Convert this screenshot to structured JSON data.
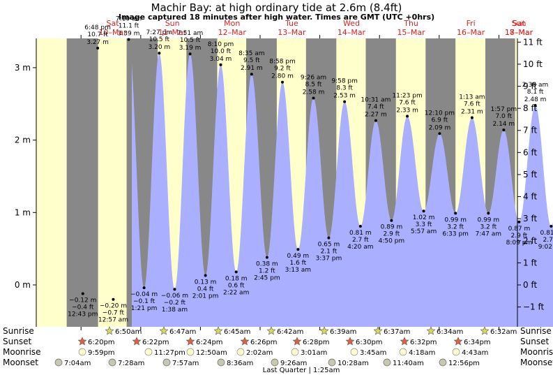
{
  "title": "Machir Bay: at high  ordinary tide at 2.6m (8.4ft)",
  "subtitle": "Image captured 18 minutes after high water. Times are GMT (UTC +0hrs)",
  "colors": {
    "water": "#aab0ff",
    "day": "#ffffcc",
    "night": "#888888",
    "dayLabel": "#e02020"
  },
  "chart_data": {
    "type": "area",
    "title": "Machir Bay: at high  ordinary tide at 2.6m (8.4ft)",
    "subtitle": "Image captured 18 minutes after high water. Times are GMT (UTC +0hrs)",
    "x_unit": "days from Sat 10-Mar 00:00 GMT",
    "x_range": [
      0.85,
      8.42
    ],
    "ylim_m": [
      -0.5,
      3.4
    ],
    "left_axis": {
      "ticks": [
        3,
        2,
        1,
        0
      ],
      "labels": [
        "3 m",
        "2 m",
        "1 m",
        "0 m"
      ]
    },
    "right_axis": {
      "ticks_ft": [
        11,
        10,
        9,
        8,
        7,
        6,
        5,
        4,
        3,
        2,
        1,
        0,
        -1
      ],
      "labels": [
        "11 ft",
        "10 ft",
        "9 ft",
        "8 ft",
        "7 ft",
        "6 ft",
        "5 ft",
        "4 ft",
        "3 ft",
        "2 ft",
        "1 ft",
        "0 ft",
        "−1 ft"
      ]
    },
    "days": [
      {
        "d": "Sat",
        "date": "10–Mar",
        "x": 0.96
      },
      {
        "d": "Sun",
        "date": "11–Mar",
        "x": 1.96
      },
      {
        "d": "Mon",
        "date": "12–Mar",
        "x": 2.96
      },
      {
        "d": "Tue",
        "date": "13–Mar",
        "x": 3.96
      },
      {
        "d": "Wed",
        "date": "14–Mar",
        "x": 4.96
      },
      {
        "d": "Thu",
        "date": "15–Mar",
        "x": 5.96
      },
      {
        "d": "Fri",
        "date": "16–Mar",
        "x": 6.96
      },
      {
        "d": "Sat",
        "date": "17–Mar",
        "x": 7.96
      },
      {
        "d": "Sun",
        "date": "18–Mar",
        "x": 8.96
      }
    ],
    "tides": [
      {
        "type": "low",
        "t": 0.03,
        "m": "−0.12 m",
        "ft": "−0.4 ft",
        "time": "12:43 pm",
        "h": -0.12
      },
      {
        "type": "high",
        "t": 0.279,
        "m": "3.27 m",
        "ft": "10.7 ft",
        "time": "6:48 pm",
        "h": 3.27
      },
      {
        "type": "low",
        "t": 0.54,
        "m": "−0.20 m",
        "ft": "−0.7 ft",
        "time": "12:57 am",
        "h": -0.2
      },
      {
        "type": "high",
        "t": 0.798,
        "m": "3.39 m",
        "ft": "11.1 ft",
        "time": "7:10 am",
        "h": 3.39
      },
      {
        "type": "low",
        "t": 1.056,
        "m": "−0.04 m",
        "ft": "−0.1 ft",
        "time": "1:21 pm",
        "h": -0.04
      },
      {
        "type": "high",
        "t": 1.31,
        "m": "3.20 m",
        "ft": "10.5 ft",
        "time": "7:27 pm",
        "h": 3.2
      },
      {
        "type": "low",
        "t": 1.568,
        "m": "−0.06 m",
        "ft": "−0.2 ft",
        "time": "1:38 am",
        "h": -0.06
      },
      {
        "type": "high",
        "t": 1.827,
        "m": "3.19 m",
        "ft": "10.5 ft",
        "time": "7:51 am",
        "h": 3.19
      },
      {
        "type": "low",
        "t": 2.084,
        "m": "0.13 m",
        "ft": "0.4 ft",
        "time": "2:01 pm",
        "h": 0.13
      },
      {
        "type": "high",
        "t": 2.34,
        "m": "3.04 m",
        "ft": "10.0 ft",
        "time": "8:10 pm",
        "h": 3.04
      },
      {
        "type": "low",
        "t": 2.599,
        "m": "0.18 m",
        "ft": "0.6 ft",
        "time": "2:22 am",
        "h": 0.18
      },
      {
        "type": "high",
        "t": 2.858,
        "m": "2.91 m",
        "ft": "9.5 ft",
        "time": "8:35 am",
        "h": 2.91
      },
      {
        "type": "low",
        "t": 3.115,
        "m": "0.38 m",
        "ft": "1.2 ft",
        "time": "2:45 pm",
        "h": 0.38
      },
      {
        "type": "high",
        "t": 3.374,
        "m": "2.80 m",
        "ft": "9.2 ft",
        "time": "8:58 pm",
        "h": 2.8
      },
      {
        "type": "low",
        "t": 3.635,
        "m": "0.49 m",
        "ft": "1.6 ft",
        "time": "3:13 am",
        "h": 0.49
      },
      {
        "type": "high",
        "t": 3.894,
        "m": "2.58 m",
        "ft": "8.5 ft",
        "time": "9:26 am",
        "h": 2.58
      },
      {
        "type": "low",
        "t": 4.15,
        "m": "0.65 m",
        "ft": "2.1 ft",
        "time": "3:37 pm",
        "h": 0.65
      },
      {
        "type": "high",
        "t": 4.415,
        "m": "2.53 m",
        "ft": "8.3 ft",
        "time": "9:58 pm",
        "h": 2.53
      },
      {
        "type": "low",
        "t": 4.68,
        "m": "0.81 m",
        "ft": "2.7 ft",
        "time": "4:20 am",
        "h": 0.81
      },
      {
        "type": "high",
        "t": 4.938,
        "m": "2.27 m",
        "ft": "7.4 ft",
        "time": "10:31 am",
        "h": 2.27
      },
      {
        "type": "low",
        "t": 5.201,
        "m": "0.89 m",
        "ft": "2.9 ft",
        "time": "4:50 pm",
        "h": 0.89
      },
      {
        "type": "high",
        "t": 5.466,
        "m": "2.33 m",
        "ft": "7.6 ft",
        "time": "11:23 pm",
        "h": 2.33
      },
      {
        "type": "low",
        "t": 5.74,
        "m": "1.02 m",
        "ft": "3.3 ft",
        "time": "5:57 am",
        "h": 1.02
      },
      {
        "type": "high",
        "t": 6.007,
        "m": "2.09 m",
        "ft": "6.9 ft",
        "time": "12:10 pm",
        "h": 2.09
      },
      {
        "type": "low",
        "t": 6.273,
        "m": "0.99 m",
        "ft": "3.2 ft",
        "time": "6:33 pm",
        "h": 0.99
      },
      {
        "type": "high",
        "t": 6.55,
        "m": "2.31 m",
        "ft": "7.6 ft",
        "time": "1:13 am",
        "h": 2.31
      },
      {
        "type": "low",
        "t": 6.824,
        "m": "0.99 m",
        "ft": "3.2 ft",
        "time": "7:47 am",
        "h": 0.99
      },
      {
        "type": "high",
        "t": 7.081,
        "m": "2.14 m",
        "ft": "7.0 ft",
        "time": "1:57 pm",
        "h": 2.14
      },
      {
        "type": "low",
        "t": 7.339,
        "m": "0.87 m",
        "ft": "2.9 ft",
        "time": "8:09 pm",
        "h": 0.87
      },
      {
        "type": "high",
        "t": 7.61,
        "m": "2.48 m",
        "ft": "8.1 ft",
        "time": "2:38 am",
        "h": 2.48
      },
      {
        "type": "low",
        "t": 7.876,
        "m": "0.81 m",
        "ft": "2.7 ft",
        "time": "9:02 am",
        "h": 0.81
      }
    ],
    "sunrise": [
      "6:50am",
      "6:47am",
      "6:45am",
      "6:42am",
      "6:39am",
      "6:37am",
      "6:34am",
      "6:32am"
    ],
    "sunset": [
      "6:20pm",
      "6:22pm",
      "6:24pm",
      "6:26pm",
      "6:28pm",
      "6:30pm",
      "6:32pm",
      "6:34pm"
    ],
    "moonrise": [
      "9:59pm",
      "11:27pm",
      "12:50am",
      "2:02am",
      "3:01am",
      "3:45am",
      "4:18am",
      "4:43am"
    ],
    "moonset": [
      "7:04am",
      "7:28am",
      "7:57am",
      "8:36am",
      "9:26am",
      "10:28am",
      "11:40am",
      "12:56pm"
    ],
    "moon_phase": "Last Quarter | 1:25am",
    "row_labels": {
      "sunrise": "Sunrise",
      "sunset": "Sunset",
      "moonrise": "Moonrise",
      "moonset": "Moonset"
    }
  }
}
